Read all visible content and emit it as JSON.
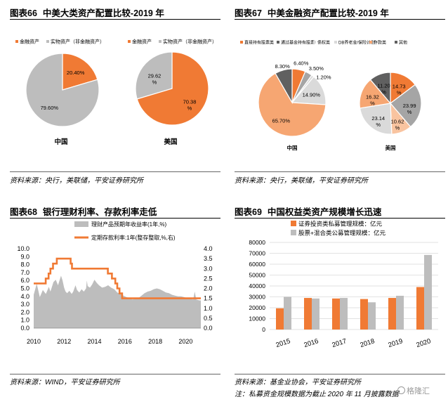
{
  "colors": {
    "orange": "#f07a34",
    "gray": "#bdbdbd",
    "dark": "#606060",
    "light_orange": "#f6a672",
    "peach": "#f9c4a0",
    "light_gray": "#dadada",
    "mid_gray": "#a5a5a5"
  },
  "panel66": {
    "number": "图表66",
    "title": "中美大类资产配置比较-2019 年",
    "source": "资料来源：央行，美联储，平安证券研究所",
    "chart_data": {
      "type": "pie",
      "legend": [
        "金融资产",
        "实物资产（非金融资产）"
      ],
      "pies": [
        {
          "name": "中国",
          "values": [
            20.4,
            79.6
          ],
          "labels": [
            "20.40%",
            "79.60%"
          ]
        },
        {
          "name": "美国",
          "values": [
            70.38,
            29.62
          ],
          "labels": [
            "70.38%",
            "29.62%"
          ]
        }
      ]
    }
  },
  "panel67": {
    "number": "图表67",
    "title": "中美金融资产配置比较-2019 年",
    "source": "资料来源：央行，美联储，平安证券研究所",
    "chart_data": {
      "type": "pie",
      "legend": [
        "直接持有股票类",
        "通过基金持有股票",
        "债权类",
        "DB养老金/保险计划",
        "存款类",
        "其他"
      ],
      "pies": [
        {
          "name": "中国",
          "values": [
            6.4,
            3.5,
            1.2,
            14.9,
            65.7,
            8.3
          ],
          "labels": [
            "6.40%",
            "3.50%",
            "1.20%",
            "14.90%",
            "65.70%",
            "8.30%"
          ]
        },
        {
          "name": "美国",
          "values": [
            14.73,
            23.99,
            10.62,
            23.14,
            16.32,
            11.2
          ],
          "labels": [
            "14.73%",
            "23.99%",
            "10.62%",
            "23.14%",
            "16.32%",
            "11.20%"
          ]
        }
      ]
    }
  },
  "panel68": {
    "number": "图表68",
    "title": "银行理财利率、存款利率走低",
    "source": "资料来源：WIND，平安证券研究所",
    "chart_data": {
      "type": "area",
      "legend": [
        "理财产品预期年收益率(1年,%)",
        "定期存款利率:1年(整存整取,%,右)"
      ],
      "x_ticks": [
        "2010",
        "2012",
        "2014",
        "2016",
        "2018",
        "2020"
      ],
      "y_left_ticks": [
        "0.0",
        "1.0",
        "2.0",
        "3.0",
        "4.0",
        "5.0",
        "6.0",
        "7.0",
        "8.0",
        "9.0",
        "10.0"
      ],
      "y_right_ticks": [
        "0.0",
        "0.5",
        "1.0",
        "1.5",
        "2.0",
        "2.5",
        "3.0",
        "3.5",
        "4.0"
      ],
      "ylim_left": [
        0,
        10
      ],
      "ylim_right": [
        0,
        4
      ],
      "xlim": [
        2010,
        2021
      ],
      "wealth_yield": [
        [
          2010.0,
          4.2
        ],
        [
          2010.2,
          5.6
        ],
        [
          2010.4,
          3.9
        ],
        [
          2010.6,
          4.8
        ],
        [
          2010.8,
          4.3
        ],
        [
          2011.0,
          5.2
        ],
        [
          2011.1,
          4.6
        ],
        [
          2011.3,
          5.8
        ],
        [
          2011.45,
          6.1
        ],
        [
          2011.6,
          5.4
        ],
        [
          2011.8,
          6.6
        ],
        [
          2011.9,
          6.0
        ],
        [
          2012.0,
          5.1
        ],
        [
          2012.1,
          4.6
        ],
        [
          2012.2,
          4.4
        ],
        [
          2012.35,
          4.7
        ],
        [
          2012.5,
          4.3
        ],
        [
          2012.6,
          4.6
        ],
        [
          2012.75,
          5.4
        ],
        [
          2012.85,
          4.8
        ],
        [
          2013.0,
          4.5
        ],
        [
          2013.15,
          4.9
        ],
        [
          2013.3,
          4.6
        ],
        [
          2013.45,
          5.0
        ],
        [
          2013.5,
          6.0
        ],
        [
          2013.55,
          5.3
        ],
        [
          2013.7,
          5.1
        ],
        [
          2013.85,
          5.5
        ],
        [
          2014.0,
          6.1
        ],
        [
          2014.15,
          5.7
        ],
        [
          2014.3,
          5.4
        ],
        [
          2014.5,
          5.1
        ],
        [
          2014.7,
          5.2
        ],
        [
          2014.9,
          5.4
        ],
        [
          2015.1,
          5.1
        ],
        [
          2015.3,
          4.9
        ],
        [
          2015.5,
          4.5
        ],
        [
          2015.7,
          4.3
        ],
        [
          2015.9,
          4.1
        ],
        [
          2016.1,
          3.9
        ],
        [
          2016.3,
          3.8
        ],
        [
          2016.5,
          3.6
        ],
        [
          2016.7,
          3.7
        ],
        [
          2016.9,
          3.8
        ],
        [
          2017.1,
          4.1
        ],
        [
          2017.3,
          4.4
        ],
        [
          2017.5,
          4.6
        ],
        [
          2017.7,
          4.7
        ],
        [
          2017.9,
          4.9
        ],
        [
          2018.1,
          5.0
        ],
        [
          2018.3,
          4.9
        ],
        [
          2018.5,
          4.7
        ],
        [
          2018.7,
          4.5
        ],
        [
          2018.9,
          4.4
        ],
        [
          2019.1,
          4.2
        ],
        [
          2019.3,
          4.1
        ],
        [
          2019.5,
          4.0
        ],
        [
          2019.7,
          4.0
        ],
        [
          2019.9,
          3.9
        ],
        [
          2020.1,
          3.8
        ],
        [
          2020.3,
          3.7
        ],
        [
          2020.5,
          3.6
        ],
        [
          2020.6,
          4.6
        ],
        [
          2020.7,
          3.6
        ],
        [
          2020.9,
          3.5
        ],
        [
          2021.0,
          3.5
        ]
      ],
      "deposit_rate": [
        [
          2010.0,
          2.25
        ],
        [
          2010.79,
          2.25
        ],
        [
          2010.79,
          2.5
        ],
        [
          2010.98,
          2.5
        ],
        [
          2010.98,
          2.75
        ],
        [
          2011.1,
          2.75
        ],
        [
          2011.1,
          3.0
        ],
        [
          2011.27,
          3.0
        ],
        [
          2011.27,
          3.25
        ],
        [
          2011.52,
          3.25
        ],
        [
          2011.52,
          3.5
        ],
        [
          2012.43,
          3.5
        ],
        [
          2012.43,
          3.25
        ],
        [
          2012.52,
          3.25
        ],
        [
          2012.52,
          3.0
        ],
        [
          2014.88,
          3.0
        ],
        [
          2014.88,
          2.75
        ],
        [
          2015.15,
          2.75
        ],
        [
          2015.15,
          2.5
        ],
        [
          2015.37,
          2.5
        ],
        [
          2015.37,
          2.25
        ],
        [
          2015.5,
          2.25
        ],
        [
          2015.5,
          2.0
        ],
        [
          2015.65,
          2.0
        ],
        [
          2015.65,
          1.75
        ],
        [
          2015.82,
          1.75
        ],
        [
          2015.82,
          1.5
        ],
        [
          2021.0,
          1.5
        ]
      ]
    }
  },
  "panel69": {
    "number": "图表69",
    "title": "中国权益类资产规模增长迅速",
    "source": "资料来源：基金业协会，平安证券研究所",
    "note": "注：私募资金规模数据为截止 2020 年 11 月披露数据",
    "chart_data": {
      "type": "bar",
      "legend": [
        "证券投资类私募管理规模：亿元",
        "股票+混合类公募管理规模：亿元"
      ],
      "categories": [
        "2015",
        "2016",
        "2017",
        "2018",
        "2019",
        "2020"
      ],
      "series": [
        {
          "name": "证券投资类私募管理规模：亿元",
          "values": [
            19500,
            29000,
            28500,
            28000,
            29000,
            39000
          ]
        },
        {
          "name": "股票+混合类公募管理规模：亿元",
          "values": [
            30000,
            28500,
            29000,
            25000,
            31000,
            68500
          ]
        }
      ],
      "y_ticks": [
        "0",
        "10000",
        "20000",
        "30000",
        "40000",
        "50000",
        "60000",
        "70000",
        "80000"
      ],
      "ylim": [
        0,
        80000
      ]
    }
  },
  "watermark": "格隆汇"
}
